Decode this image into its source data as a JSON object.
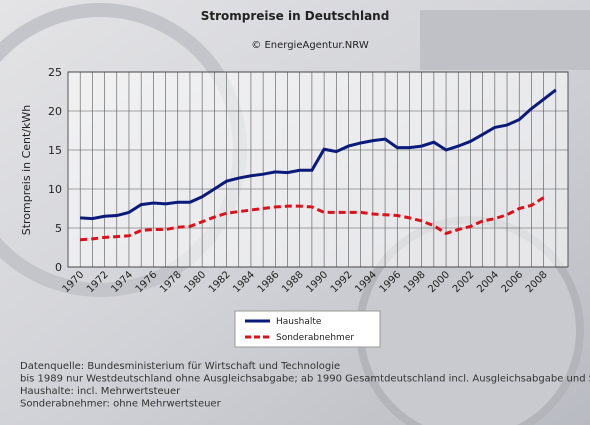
{
  "chart_data": {
    "type": "line",
    "title": "Strompreise in Deutschland",
    "subtitle": "© EnergieAgentur.NRW",
    "y_label": "Strompreis in Cent/kWh",
    "x": [
      1970,
      1971,
      1972,
      1973,
      1974,
      1975,
      1976,
      1977,
      1978,
      1979,
      1980,
      1981,
      1982,
      1983,
      1984,
      1985,
      1986,
      1987,
      1988,
      1989,
      1990,
      1991,
      1992,
      1993,
      1994,
      1995,
      1996,
      1997,
      1998,
      1999,
      2000,
      2001,
      2002,
      2003,
      2004,
      2005,
      2006,
      2007,
      2008,
      2009
    ],
    "series": [
      {
        "name": "Haushalte",
        "color": "#0a1a7a",
        "dash": false,
        "values": [
          6.3,
          6.2,
          6.5,
          6.6,
          7.0,
          8.0,
          8.2,
          8.1,
          8.3,
          8.3,
          9.0,
          10.0,
          11.0,
          11.4,
          11.7,
          11.9,
          12.2,
          12.1,
          12.4,
          12.4,
          15.1,
          14.8,
          15.5,
          15.9,
          16.2,
          16.4,
          15.3,
          15.3,
          15.5,
          16.0,
          15.0,
          15.5,
          16.1,
          17.0,
          17.9,
          18.2,
          18.9,
          20.3,
          21.5,
          22.7
        ]
      },
      {
        "name": "Sonderabnehmer",
        "color": "#e0101a",
        "dash": true,
        "values": [
          3.5,
          3.6,
          3.8,
          3.9,
          4.0,
          4.7,
          4.8,
          4.8,
          5.1,
          5.2,
          5.8,
          6.4,
          6.9,
          7.1,
          7.3,
          7.5,
          7.7,
          7.8,
          7.8,
          7.7,
          7.0,
          7.0,
          7.0,
          7.0,
          6.8,
          6.7,
          6.6,
          6.3,
          5.9,
          5.3,
          4.3,
          4.8,
          5.2,
          5.9,
          6.2,
          6.7,
          7.5,
          7.9,
          8.9,
          null
        ]
      }
    ],
    "xlim": [
      1969,
      2010
    ],
    "xticks": [
      1970,
      1972,
      1974,
      1976,
      1978,
      1980,
      1982,
      1984,
      1986,
      1988,
      1990,
      1992,
      1994,
      1996,
      1998,
      2000,
      2002,
      2004,
      2006,
      2008
    ],
    "xminorticks": [
      1971,
      1973,
      1975,
      1977,
      1979,
      1981,
      1983,
      1985,
      1987,
      1989,
      1991,
      1993,
      1995,
      1997,
      1999,
      2001,
      2003,
      2005,
      2007,
      2009
    ],
    "ylim": [
      0,
      25
    ],
    "yticks": [
      0,
      5,
      10,
      15,
      20,
      25
    ],
    "grid": true,
    "notes": [
      "Datenquelle: Bundesministerium für Wirtschaft und Technologie",
      "bis 1989 nur Westdeutschland ohne Ausgleichsabgabe; ab 1990 Gesamtdeutschland incl. Ausgleichsabgabe und Stromsteuer",
      "Haushalte: incl. Mehrwertsteuer",
      "Sonderabnehmer: ohne Mehrwertsteuer"
    ]
  }
}
